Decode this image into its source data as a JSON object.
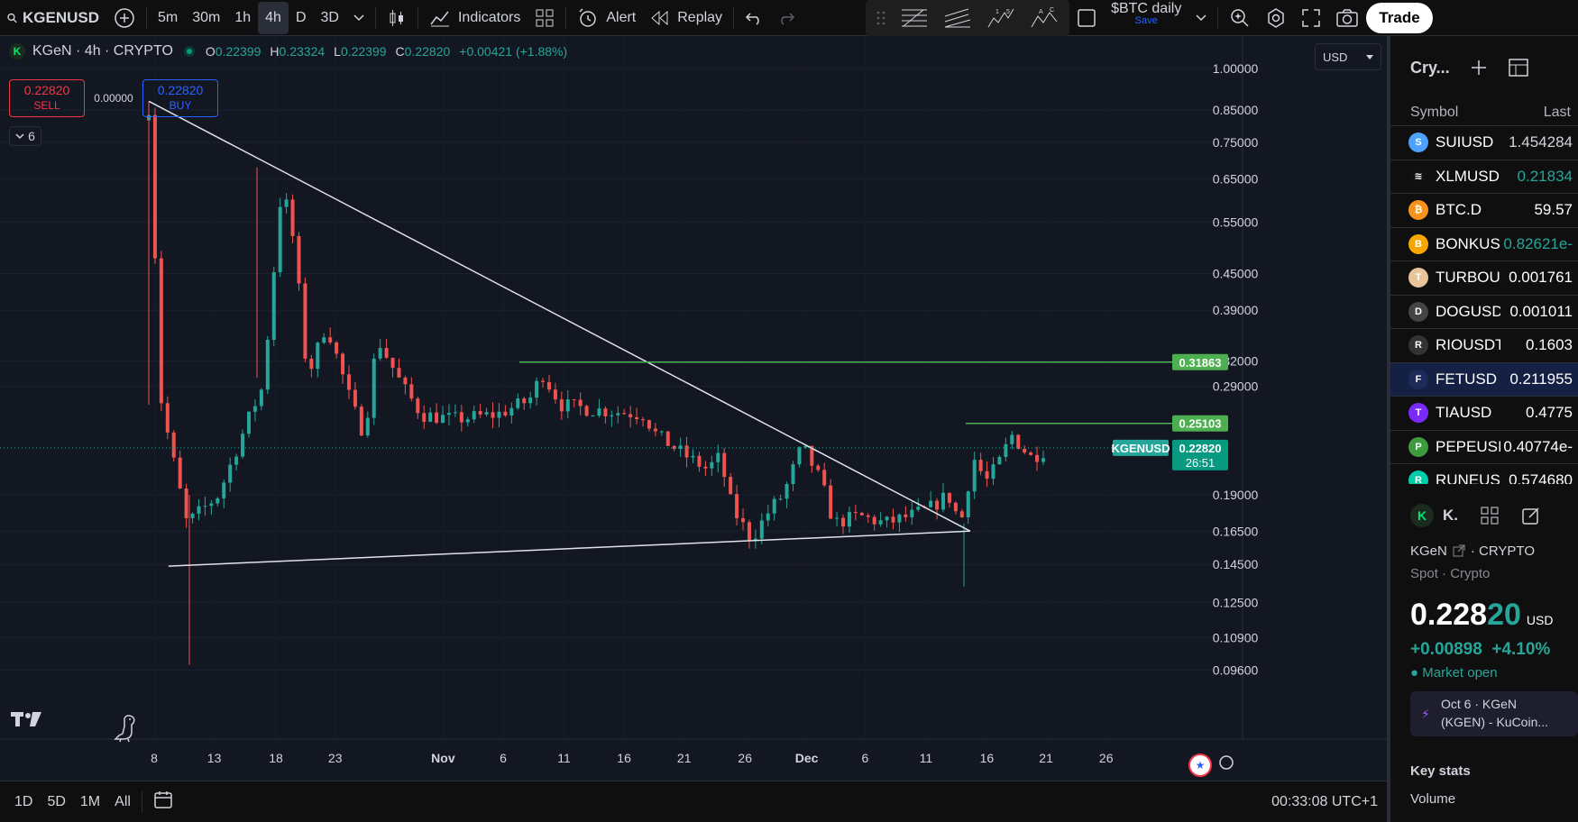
{
  "toolbar": {
    "symbol": "KGENUSD",
    "intervals": [
      "5m",
      "30m",
      "1h",
      "4h",
      "D",
      "3D"
    ],
    "active_interval": "4h",
    "indicators_label": "Indicators",
    "alert_label": "Alert",
    "replay_label": "Replay",
    "layout_name": "$BTC daily",
    "layout_save": "Save",
    "trade_label": "Trade"
  },
  "legend": {
    "title": "KGeN · 4h · CRYPTO",
    "open_label": "O",
    "open": "0.22399",
    "high_label": "H",
    "high": "0.23324",
    "low_label": "L",
    "low": "0.22399",
    "close_label": "C",
    "close": "0.22820",
    "change": "+0.00421 (+1.88%)"
  },
  "trade_box": {
    "sell_price": "0.22820",
    "sell_label": "SELL",
    "spread": "0.00000",
    "buy_price": "0.22820",
    "buy_label": "BUY"
  },
  "collapse_count": "6",
  "currency": "USD",
  "chart_data": {
    "type": "candlestick",
    "y_scale": "log",
    "y_ticks": [
      1.0,
      0.85,
      0.75,
      0.65,
      0.55,
      0.45,
      0.39,
      0.32,
      0.29,
      0.19,
      0.165,
      0.145,
      0.125,
      0.109,
      0.096
    ],
    "y_tick_labels": [
      "1.00000",
      "0.85000",
      "0.75000",
      "0.65000",
      "0.55000",
      "0.45000",
      "0.39000",
      "0.32000",
      "0.29000",
      "0.19000",
      "0.16500",
      "0.14500",
      "0.12500",
      "0.10900",
      "0.09600"
    ],
    "x_tick_labels": [
      "8",
      "13",
      "18",
      "23",
      "Nov",
      "6",
      "11",
      "16",
      "21",
      "26",
      "Dec",
      "6",
      "11",
      "16",
      "21",
      "26"
    ],
    "ylim": [
      0.09,
      1.08
    ],
    "price_series": [
      [
        0,
        0.86
      ],
      [
        2,
        0.27
      ],
      [
        6,
        0.17
      ],
      [
        11,
        0.19
      ],
      [
        16,
        0.26
      ],
      [
        18,
        0.29
      ],
      [
        21,
        0.64
      ],
      [
        23,
        0.5
      ],
      [
        25,
        0.3
      ],
      [
        28,
        0.37
      ],
      [
        32,
        0.27
      ],
      [
        34,
        0.24
      ],
      [
        36,
        0.35
      ],
      [
        40,
        0.29
      ],
      [
        43,
        0.26
      ],
      [
        48,
        0.255
      ],
      [
        55,
        0.26
      ],
      [
        60,
        0.275
      ],
      [
        62,
        0.305
      ],
      [
        65,
        0.27
      ],
      [
        70,
        0.265
      ],
      [
        78,
        0.26
      ],
      [
        80,
        0.24
      ],
      [
        85,
        0.22
      ],
      [
        88,
        0.21
      ],
      [
        90,
        0.22
      ],
      [
        92,
        0.18
      ],
      [
        95,
        0.16
      ],
      [
        98,
        0.18
      ],
      [
        100,
        0.19
      ],
      [
        103,
        0.23
      ],
      [
        106,
        0.2
      ],
      [
        108,
        0.17
      ],
      [
        112,
        0.175
      ],
      [
        116,
        0.17
      ],
      [
        120,
        0.175
      ],
      [
        123,
        0.18
      ],
      [
        126,
        0.19
      ],
      [
        128,
        0.17
      ],
      [
        130,
        0.22
      ],
      [
        132,
        0.2
      ],
      [
        134,
        0.215
      ],
      [
        136,
        0.24
      ],
      [
        139,
        0.22
      ],
      [
        142,
        0.228
      ]
    ],
    "horizontal_levels": [
      {
        "value": 0.31863,
        "label": "0.31863"
      },
      {
        "value": 0.25103,
        "label": "0.25103"
      }
    ],
    "current_price": {
      "symbol": "KGENUSD",
      "value": "0.22820",
      "countdown": "26:51"
    },
    "trendlines": [
      {
        "from": [
          0,
          0.88
        ],
        "to": [
          125,
          0.165
        ]
      },
      {
        "from": [
          3,
          0.144
        ],
        "to": [
          125,
          0.165
        ]
      }
    ]
  },
  "bottom": {
    "ranges": [
      "1D",
      "5D",
      "1M",
      "All"
    ],
    "clock": "00:33:08 UTC+1"
  },
  "watchlist": {
    "title": "Cry...",
    "col_symbol": "Symbol",
    "col_last": "Last",
    "rows": [
      {
        "symbol": "SUIUSD",
        "last": "1.454284",
        "color": "#d1d4dc",
        "icon_color": "#4da2ff",
        "icon": "S"
      },
      {
        "symbol": "XLMUSD",
        "last": "0.21834",
        "color": "#26a69a",
        "icon_color": "#111111",
        "icon": "≋"
      },
      {
        "symbol": "BTC.D",
        "last": "59.57",
        "color": "#ffffff",
        "icon_color": "#f7931a",
        "icon": "₿"
      },
      {
        "symbol": "BONKUS",
        "last": "0.82621e-",
        "color": "#26a69a",
        "icon_color": "#f7a600",
        "icon": "B"
      },
      {
        "symbol": "TURBOU",
        "last": "0.001761",
        "color": "#ffffff",
        "icon_color": "#e8c49a",
        "icon": "T"
      },
      {
        "symbol": "DOGUSD",
        "last": "0.001011",
        "color": "#ffffff",
        "icon_color": "#444444",
        "icon": "D"
      },
      {
        "symbol": "RIOUSDT",
        "last": "0.1603",
        "color": "#ffffff",
        "icon_color": "#333333",
        "icon": "R"
      },
      {
        "symbol": "FETUSD",
        "last": "0.211955",
        "color": "#ffffff",
        "icon_color": "#1e2a5a",
        "icon": "F"
      },
      {
        "symbol": "TIAUSD",
        "last": "0.4775",
        "color": "#ffffff",
        "icon_color": "#7b2bf9",
        "icon": "T"
      },
      {
        "symbol": "PEPEUSI",
        "last": "0.40774e-",
        "color": "#ffffff",
        "icon_color": "#3d9b3d",
        "icon": "P"
      },
      {
        "symbol": "RUNEUS",
        "last": "0.574680",
        "color": "#ffffff",
        "icon_color": "#00ccaa",
        "icon": "R"
      }
    ]
  },
  "details": {
    "short": "K.",
    "name": "KGeN",
    "market": "CRYPTO",
    "type": "Spot",
    "category": "Crypto",
    "price_main": "0.228",
    "price_tail": "20",
    "price_currency": "USD",
    "change": "+0.00898",
    "change_pct": "+4.10%",
    "status": "Market open",
    "news_line1": "Oct 6 · KGeN",
    "news_line2": "(KGEN) - KuCoin...",
    "key_stats": "Key stats",
    "volume": "Volume"
  }
}
